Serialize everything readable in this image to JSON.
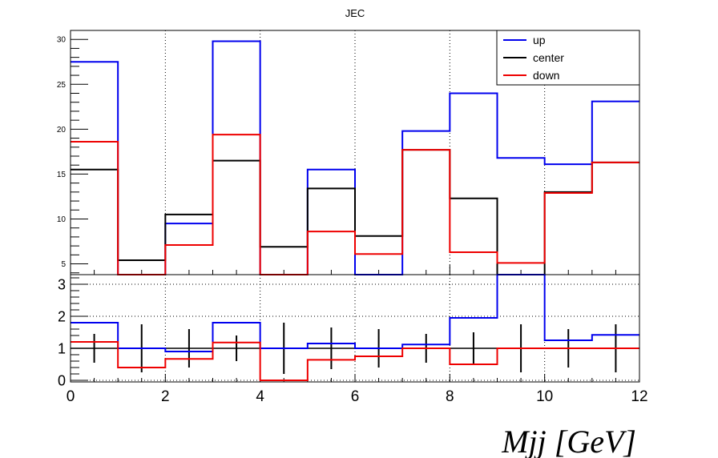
{
  "chart_data": {
    "type": "line",
    "title": "JEC",
    "xlabel": "Mjj [GeV]",
    "bin_edges": [
      0,
      1,
      2,
      3,
      4,
      5,
      6,
      7,
      8,
      9,
      10,
      11,
      12
    ],
    "xlim": [
      0,
      12
    ],
    "x_ticks": [
      "0",
      "2",
      "4",
      "6",
      "8",
      "10",
      "12"
    ],
    "legend_position": "top-right",
    "grid": true,
    "top_panel": {
      "ylim": [
        3.8,
        31
      ],
      "y_ticks": [
        "5",
        "10",
        "15",
        "20",
        "25",
        "30"
      ],
      "series": [
        {
          "name": "up",
          "color": "#0000ee",
          "values": [
            27.5,
            3.8,
            9.5,
            29.8,
            3.8,
            15.5,
            3.8,
            19.8,
            24.0,
            16.8,
            16.1,
            23.1
          ]
        },
        {
          "name": "center",
          "color": "#000000",
          "values": [
            15.5,
            5.4,
            10.5,
            16.5,
            6.9,
            13.4,
            8.1,
            17.7,
            12.3,
            3.8,
            13.0,
            16.3
          ]
        },
        {
          "name": "down",
          "color": "#ee0000",
          "values": [
            18.6,
            3.8,
            7.1,
            19.4,
            3.8,
            8.6,
            6.1,
            17.7,
            6.3,
            5.1,
            12.9,
            16.3
          ]
        }
      ]
    },
    "ratio_panel": {
      "ylim": [
        -0.05,
        3.3
      ],
      "y_ticks": [
        "0",
        "1",
        "2",
        "3"
      ],
      "series": [
        {
          "name": "up",
          "color": "#0000ee",
          "values": [
            1.8,
            1.0,
            0.9,
            1.8,
            1.0,
            1.15,
            1.0,
            1.12,
            1.95,
            3.3,
            1.25,
            1.42
          ]
        },
        {
          "name": "down",
          "color": "#ee0000",
          "values": [
            1.2,
            0.4,
            0.67,
            1.18,
            0.0,
            0.64,
            0.75,
            1.0,
            0.5,
            1.0,
            1.0,
            1.0
          ]
        }
      ],
      "reference": {
        "name": "center",
        "color": "#000000",
        "values": [
          1,
          1,
          1,
          1,
          1,
          1,
          1,
          1,
          1,
          1,
          1,
          1
        ],
        "errors": [
          0.45,
          0.75,
          0.6,
          0.4,
          0.8,
          0.65,
          0.6,
          0.45,
          0.5,
          0.75,
          0.6,
          0.75
        ]
      }
    }
  }
}
